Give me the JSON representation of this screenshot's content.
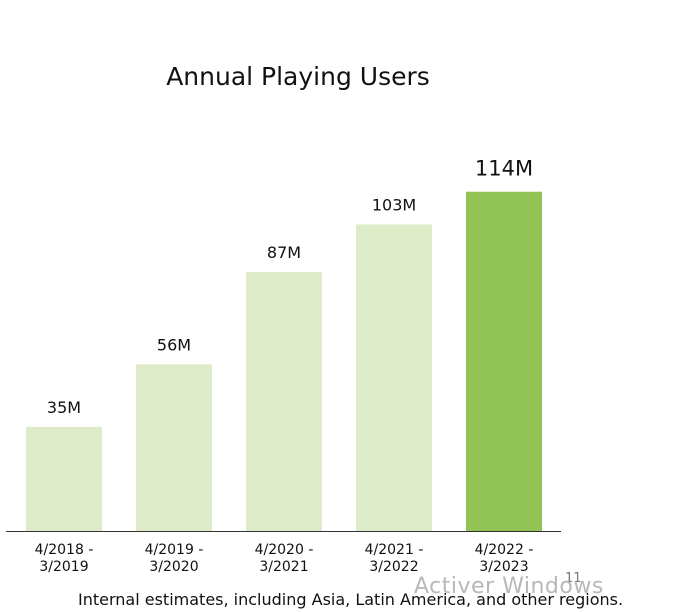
{
  "chart_data": {
    "type": "bar",
    "title": "Annual Playing Users",
    "categories": [
      [
        "4/2018 -",
        "3/2019"
      ],
      [
        "4/2019 -",
        "3/2020"
      ],
      [
        "4/2020 -",
        "3/2021"
      ],
      [
        "4/2021 -",
        "3/2022"
      ],
      [
        "4/2022 -",
        "3/2023"
      ]
    ],
    "values": [
      35,
      56,
      87,
      103,
      114
    ],
    "value_labels": [
      "35M",
      "56M",
      "87M",
      "103M",
      "114M"
    ],
    "unit": "M",
    "highlight_index": 4,
    "colors": {
      "bar": "#deebc8",
      "highlight": "#92c455",
      "axis": "#333333"
    },
    "xlabel": "",
    "ylabel": "",
    "ylim": [
      0,
      120
    ],
    "grid": false
  },
  "footnote": "Internal estimates, including Asia, Latin America, and other regions.",
  "watermark": "Activer Windows",
  "page_number": "11"
}
